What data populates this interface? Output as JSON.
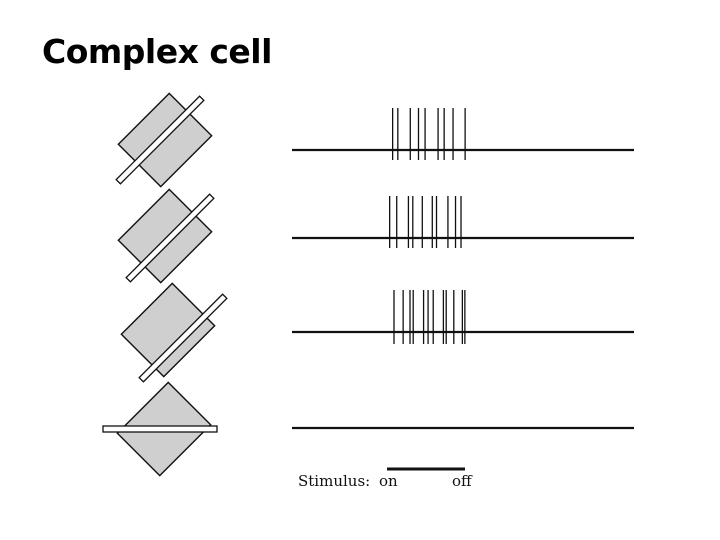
{
  "slide": {
    "title": "Complex cell"
  },
  "colors": {
    "receptive_field_fill": "#cfcfcf",
    "ink": "#111111",
    "background": "#ffffff"
  },
  "figure": {
    "rows": [
      {
        "bar_position": "upper-edge",
        "bar_orientation": "preferred",
        "spike_count": 9,
        "response": "strong"
      },
      {
        "bar_position": "center",
        "bar_orientation": "preferred",
        "spike_count": 10,
        "response": "strong"
      },
      {
        "bar_position": "lower-edge",
        "bar_orientation": "preferred",
        "spike_count": 12,
        "response": "strong"
      },
      {
        "bar_position": "center",
        "bar_orientation": "horizontal",
        "spike_count": 0,
        "response": "none"
      }
    ]
  },
  "stimulus_legend": {
    "label": "Stimulus:",
    "on_label": "on",
    "off_label": "off"
  }
}
